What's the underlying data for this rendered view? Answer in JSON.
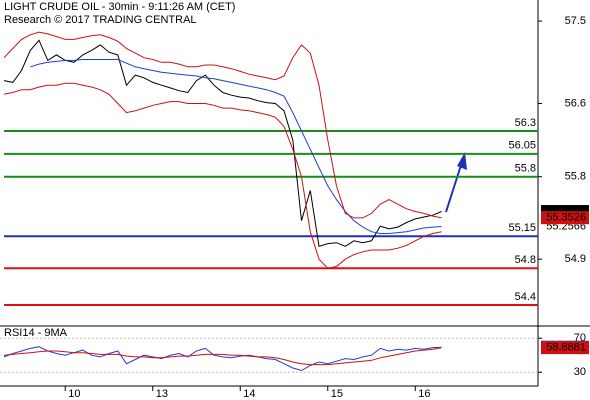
{
  "chart_data": [
    {
      "type": "line",
      "title": "LIGHT CRUDE OIL - 30min - 9:11:26 AM (CET)",
      "subtitle": "Research © 2017 TRADING CENTRAL",
      "categories": [
        null,
        null,
        null,
        null,
        null,
        null,
        null,
        "10",
        null,
        null,
        null,
        null,
        null,
        null,
        null,
        null,
        null,
        "13",
        null,
        null,
        null,
        null,
        null,
        null,
        null,
        null,
        null,
        "14",
        null,
        null,
        null,
        null,
        null,
        null,
        null,
        null,
        null,
        "15",
        null,
        null,
        null,
        null,
        null,
        null,
        null,
        null,
        null,
        "16",
        null,
        null,
        null
      ],
      "series": [
        {
          "color": "#000000",
          "values": [
            56.85,
            56.83,
            56.96,
            57.18,
            57.29,
            57.07,
            57.13,
            57.07,
            57.05,
            57.13,
            57.18,
            57.24,
            57.16,
            57.13,
            56.8,
            56.91,
            56.88,
            56.83,
            56.8,
            56.77,
            56.74,
            56.72,
            56.85,
            56.91,
            56.8,
            56.72,
            56.69,
            56.67,
            56.66,
            56.63,
            56.61,
            56.6,
            56.52,
            56.2,
            55.32,
            55.65,
            55.04,
            55.07,
            55.08,
            55.04,
            55.1,
            55.08,
            55.1,
            55.26,
            55.23,
            55.25,
            55.3,
            55.34,
            55.36,
            55.38,
            55.42
          ]
        },
        {
          "color": "#1f3fcf",
          "values": [
            null,
            null,
            null,
            57.0,
            57.03,
            57.05,
            57.06,
            57.07,
            57.07,
            57.08,
            57.08,
            57.08,
            57.08,
            57.08,
            57.04,
            57.0,
            56.98,
            56.96,
            56.94,
            56.93,
            56.92,
            56.91,
            56.9,
            56.88,
            56.87,
            56.85,
            56.83,
            56.81,
            56.79,
            56.77,
            56.75,
            56.72,
            56.68,
            56.5,
            56.3,
            56.1,
            55.9,
            55.7,
            55.55,
            55.42,
            55.32,
            55.25,
            55.2,
            55.18,
            55.18,
            55.19,
            55.2,
            55.22,
            55.24,
            55.25,
            55.2566
          ]
        },
        {
          "color": "#d01010",
          "values": [
            57.1,
            57.2,
            57.3,
            57.35,
            57.38,
            57.36,
            57.33,
            57.3,
            57.3,
            57.32,
            57.34,
            57.35,
            57.32,
            57.28,
            57.2,
            57.15,
            57.1,
            57.08,
            57.05,
            57.05,
            57.03,
            57.0,
            57.0,
            57.02,
            57.02,
            57.0,
            56.98,
            56.95,
            56.92,
            56.9,
            56.88,
            56.86,
            56.9,
            57.1,
            57.24,
            57.15,
            56.8,
            56.2,
            55.7,
            55.4,
            55.35,
            55.35,
            55.4,
            55.5,
            55.55,
            55.5,
            55.45,
            55.42,
            55.4,
            55.37,
            55.3526
          ]
        },
        {
          "color": "#d01010",
          "values": [
            56.7,
            56.72,
            56.75,
            56.75,
            56.78,
            56.8,
            56.8,
            56.82,
            56.82,
            56.8,
            56.78,
            56.75,
            56.7,
            56.6,
            56.5,
            56.52,
            56.55,
            56.58,
            56.6,
            56.62,
            56.62,
            56.6,
            56.6,
            56.6,
            56.58,
            56.55,
            56.55,
            56.53,
            56.52,
            56.5,
            56.48,
            56.45,
            56.35,
            56.1,
            55.8,
            55.2,
            54.9,
            54.8,
            54.82,
            54.9,
            54.95,
            54.98,
            55.0,
            55.0,
            55.0,
            55.02,
            55.05,
            55.1,
            55.15,
            55.18,
            55.2
          ]
        }
      ],
      "levels": [
        {
          "value": 56.3,
          "color": "#1a8c1a"
        },
        {
          "value": 56.05,
          "color": "#1a8c1a"
        },
        {
          "value": 55.8,
          "color": "#1a8c1a"
        },
        {
          "value": 55.15,
          "color": "#1f2fbf"
        },
        {
          "value": 54.8,
          "color": "#e01010"
        },
        {
          "value": 54.4,
          "color": "#e01010"
        }
      ],
      "ylim": [
        54.17,
        57.73
      ],
      "yticks": [
        57.5,
        56.6,
        55.8,
        54.9
      ]
    },
    {
      "type": "line",
      "title": "RSI14 - 9MA",
      "series": [
        {
          "color": "#1f3fcf",
          "values": [
            48,
            52,
            55,
            58,
            60,
            55,
            52,
            50,
            53,
            56,
            50,
            48,
            52,
            55,
            40,
            45,
            50,
            48,
            46,
            50,
            52,
            48,
            55,
            58,
            50,
            48,
            47,
            49,
            50,
            48,
            46,
            45,
            40,
            35,
            32,
            38,
            42,
            40,
            43,
            46,
            45,
            48,
            50,
            58,
            55,
            57,
            56,
            58,
            57,
            59,
            59.4446
          ]
        },
        {
          "color": "#d01010",
          "values": [
            50,
            51,
            52,
            53,
            54,
            55,
            55,
            54,
            53,
            53,
            52,
            51,
            51,
            51,
            49,
            48,
            48,
            47,
            47,
            48,
            49,
            49,
            50,
            51,
            51,
            51,
            50,
            50,
            49,
            48,
            48,
            47,
            45,
            42,
            40,
            39,
            39,
            39,
            40,
            41,
            42,
            43,
            44,
            47,
            49,
            51,
            53,
            55,
            56,
            57,
            58.8881
          ]
        }
      ],
      "ylim": [
        15,
        82
      ],
      "yticks": [
        70,
        30
      ]
    }
  ]
}
